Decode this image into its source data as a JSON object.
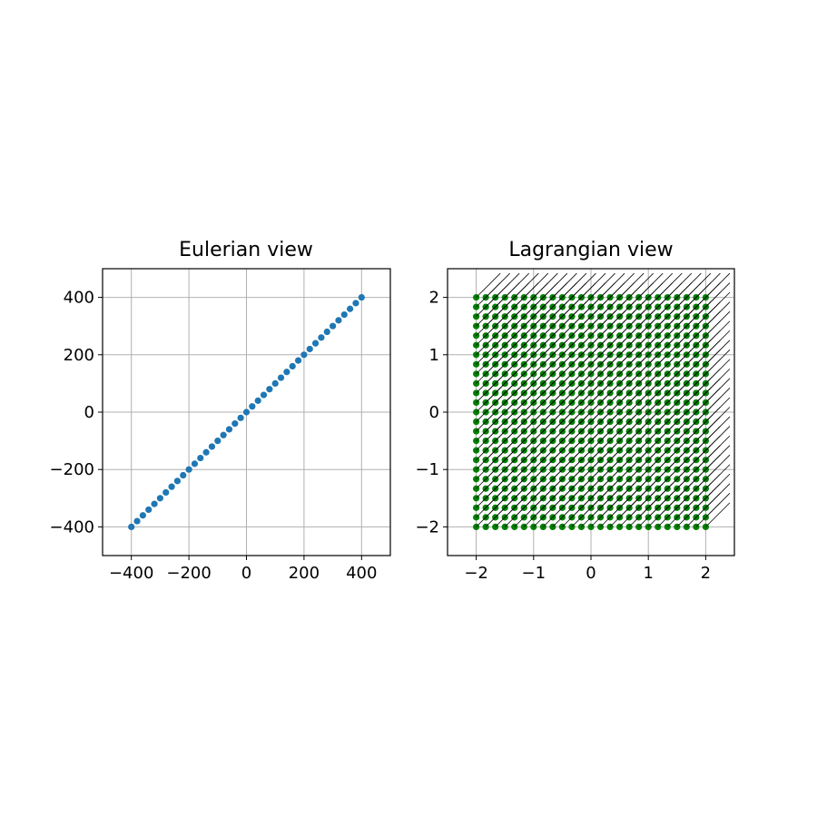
{
  "chart_data": [
    {
      "type": "scatter",
      "title": "Eulerian view",
      "xlabel": "",
      "ylabel": "",
      "xlim": [
        -500,
        500
      ],
      "ylim": [
        -500,
        500
      ],
      "xticks": [
        -400,
        -200,
        0,
        200,
        400
      ],
      "yticks": [
        -400,
        -200,
        0,
        200,
        400
      ],
      "xtick_labels": [
        "−400",
        "−200",
        "0",
        "200",
        "400"
      ],
      "ytick_labels": [
        "−400",
        "−200",
        "0",
        "200",
        "400"
      ],
      "grid": true,
      "series": [
        {
          "color": "#1f77b4",
          "x_range": [
            -400,
            400
          ],
          "y_range": [
            -400,
            400
          ],
          "n_points": 41,
          "relation": "y = x"
        }
      ]
    },
    {
      "type": "scatter",
      "title": "Lagrangian view",
      "xlabel": "",
      "ylabel": "",
      "xlim": [
        -2.5,
        2.5
      ],
      "ylim": [
        -2.5,
        2.5
      ],
      "xticks": [
        -2,
        -1,
        0,
        1,
        2
      ],
      "yticks": [
        -2,
        -1,
        0,
        1,
        2
      ],
      "xtick_labels": [
        "−2",
        "−1",
        "0",
        "1",
        "2"
      ],
      "ytick_labels": [
        "−2",
        "−1",
        "0",
        "1",
        "2"
      ],
      "grid": true,
      "series": [
        {
          "color": "#008000",
          "grid_points": {
            "x_range": [
              -2,
              2
            ],
            "y_range": [
              -2,
              2
            ],
            "n": 25
          }
        },
        {
          "type": "quiver",
          "color": "#000000",
          "grid_points": {
            "x_range": [
              -2,
              2
            ],
            "y_range": [
              -2,
              2
            ],
            "n": 25
          },
          "vector": [
            0.42,
            0.42
          ]
        }
      ]
    }
  ]
}
